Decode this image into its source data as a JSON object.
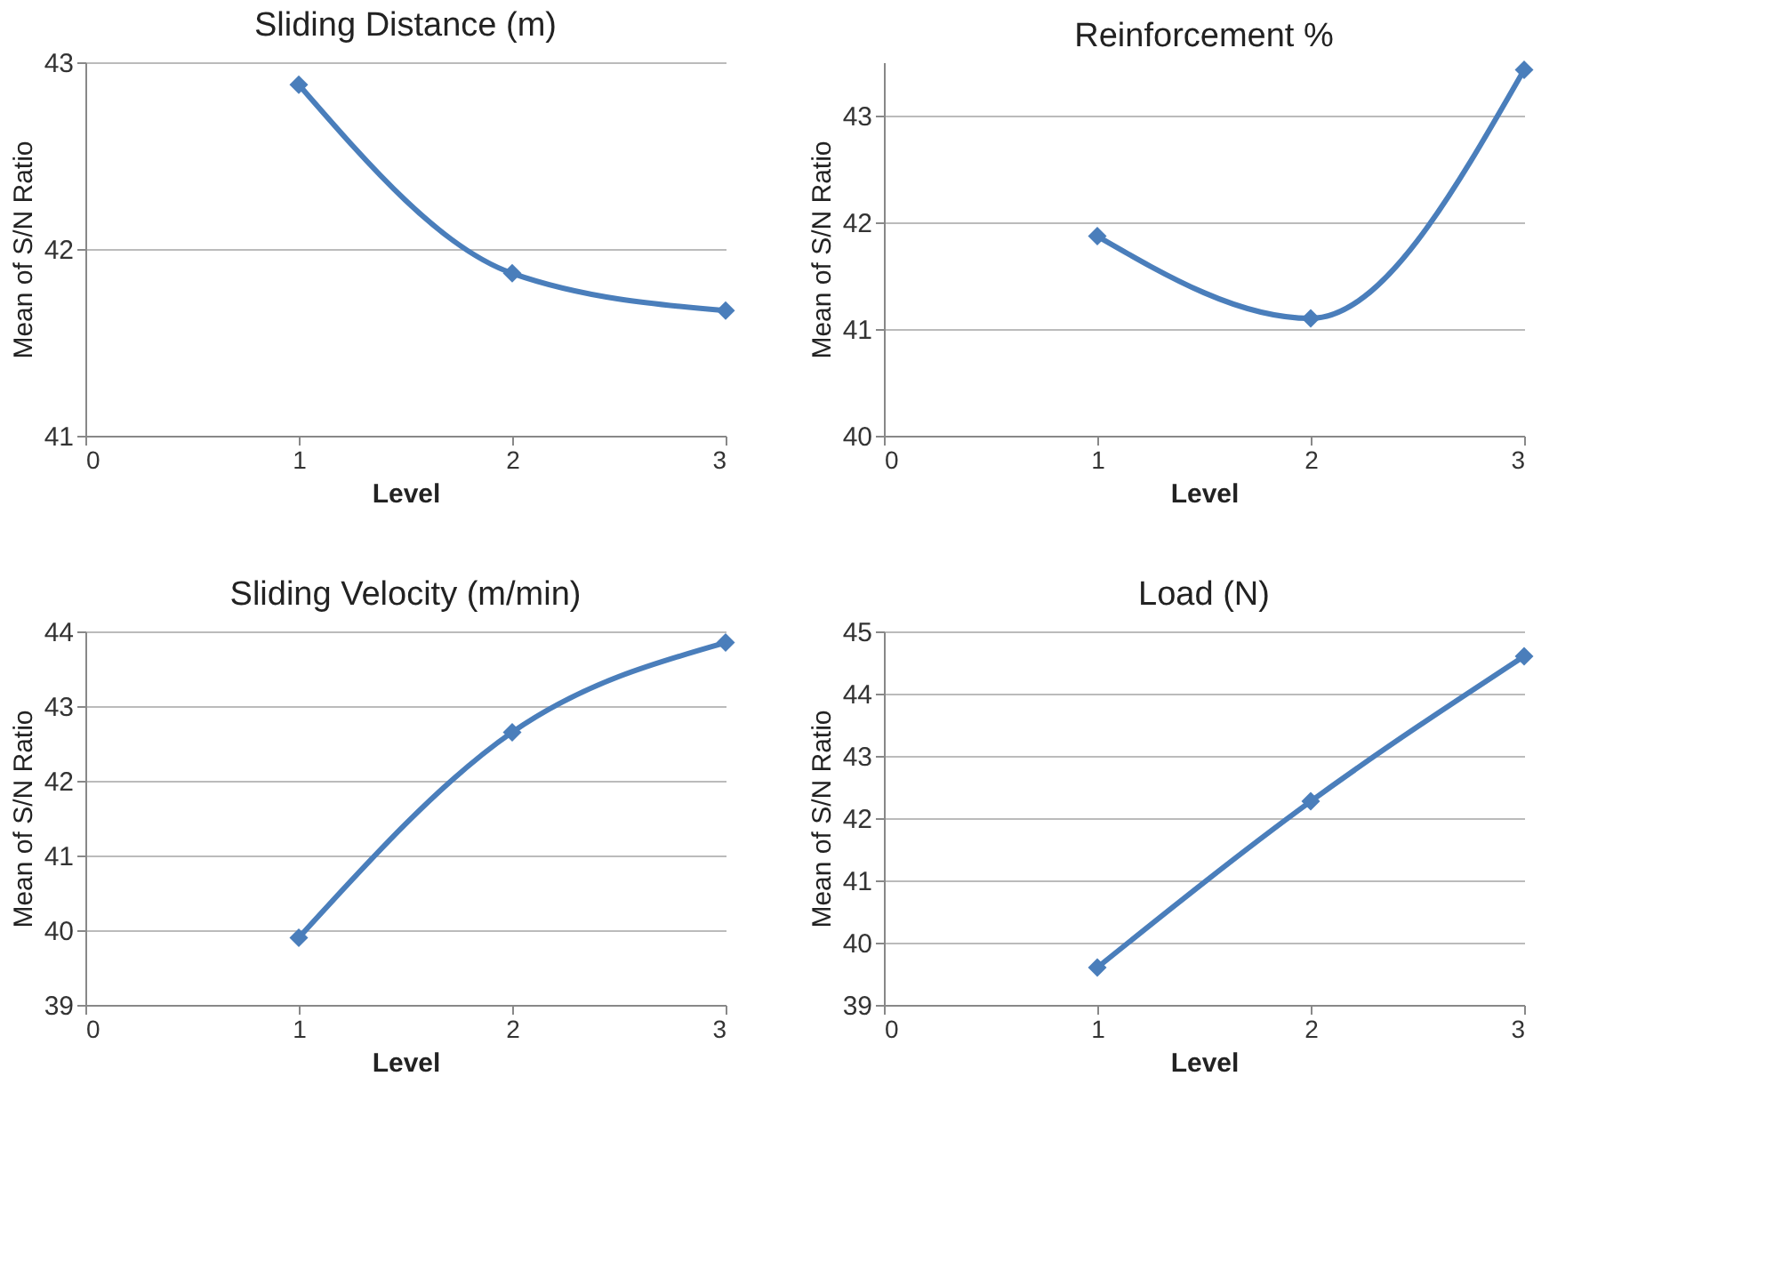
{
  "chart_data": [
    {
      "type": "line",
      "title": "Sliding Distance (m)",
      "xlabel": "Level",
      "ylabel": "Mean of S/N Ratio",
      "x": [
        1,
        2,
        3
      ],
      "series": [
        {
          "color": "#4a7ebb",
          "values": [
            42.88,
            41.87,
            41.67
          ]
        }
      ],
      "xlim": [
        0,
        3
      ],
      "xticks": [
        0,
        1,
        2,
        3
      ],
      "ylim": [
        41,
        43
      ],
      "yticks": [
        41,
        42,
        43
      ],
      "grid": "y",
      "marker": "diamond",
      "line_style": "solid"
    },
    {
      "type": "line",
      "title": "Reinforcement %",
      "xlabel": "Level",
      "ylabel": "Mean of S/N Ratio",
      "x": [
        1,
        2,
        3
      ],
      "series": [
        {
          "color": "#4a7ebb",
          "values": [
            41.87,
            41.1,
            43.43
          ]
        }
      ],
      "xlim": [
        0,
        3
      ],
      "xticks": [
        0,
        1,
        2,
        3
      ],
      "ylim": [
        40,
        43.5
      ],
      "yticks": [
        40,
        41,
        42,
        43
      ],
      "grid": "y",
      "marker": "diamond",
      "line_style": "solid"
    },
    {
      "type": "line",
      "title": "Sliding Velocity (m/min)",
      "xlabel": "Level",
      "ylabel": "Mean of S/N Ratio",
      "x": [
        1,
        2,
        3
      ],
      "series": [
        {
          "color": "#4a7ebb",
          "values": [
            39.9,
            42.65,
            43.85
          ]
        }
      ],
      "xlim": [
        0,
        3
      ],
      "xticks": [
        0,
        1,
        2,
        3
      ],
      "ylim": [
        39,
        44
      ],
      "yticks": [
        39,
        40,
        41,
        42,
        43,
        44
      ],
      "grid": "y",
      "marker": "diamond",
      "line_style": "solid"
    },
    {
      "type": "line",
      "title": "Load (N)",
      "xlabel": "Level",
      "ylabel": "Mean of S/N Ratio",
      "x": [
        1,
        2,
        3
      ],
      "series": [
        {
          "color": "#4a7ebb",
          "values": [
            39.6,
            42.27,
            44.6
          ]
        }
      ],
      "xlim": [
        0,
        3
      ],
      "xticks": [
        0,
        1,
        2,
        3
      ],
      "ylim": [
        39,
        45
      ],
      "yticks": [
        39,
        40,
        41,
        42,
        43,
        44,
        45
      ],
      "grid": "y",
      "marker": "diamond",
      "line_style": "solid"
    }
  ]
}
